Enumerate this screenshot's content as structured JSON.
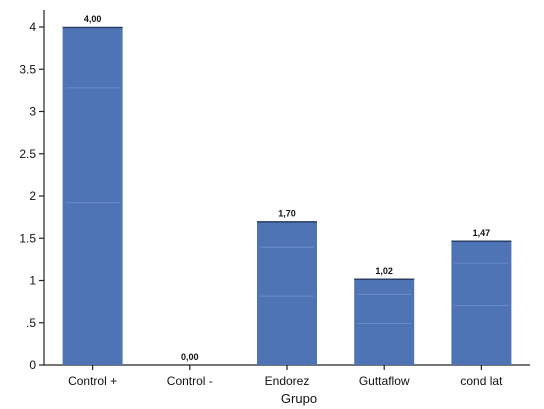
{
  "chart_data": {
    "type": "bar",
    "title": "",
    "xlabel": "Grupo",
    "ylabel": "",
    "categories": [
      "Control +",
      "Control -",
      "Endorez",
      "Guttaflow",
      "cond lat"
    ],
    "values": [
      4.0,
      0.0,
      1.7,
      1.02,
      1.47
    ],
    "data_labels": [
      "4,00",
      "0,00",
      "1,70",
      "1,02",
      "1,47"
    ],
    "ylim": [
      0,
      4.2
    ],
    "yticks": [
      0,
      0.5,
      1,
      1.5,
      2,
      2.5,
      3,
      3.5,
      4
    ],
    "ytick_labels": [
      "0",
      ".5",
      "1",
      "1.5",
      "2",
      "2.5",
      "3",
      "3.5",
      "4"
    ],
    "grid": false,
    "bar_color": "#4f74b6",
    "bar_edge_color": "#2a3f66"
  }
}
